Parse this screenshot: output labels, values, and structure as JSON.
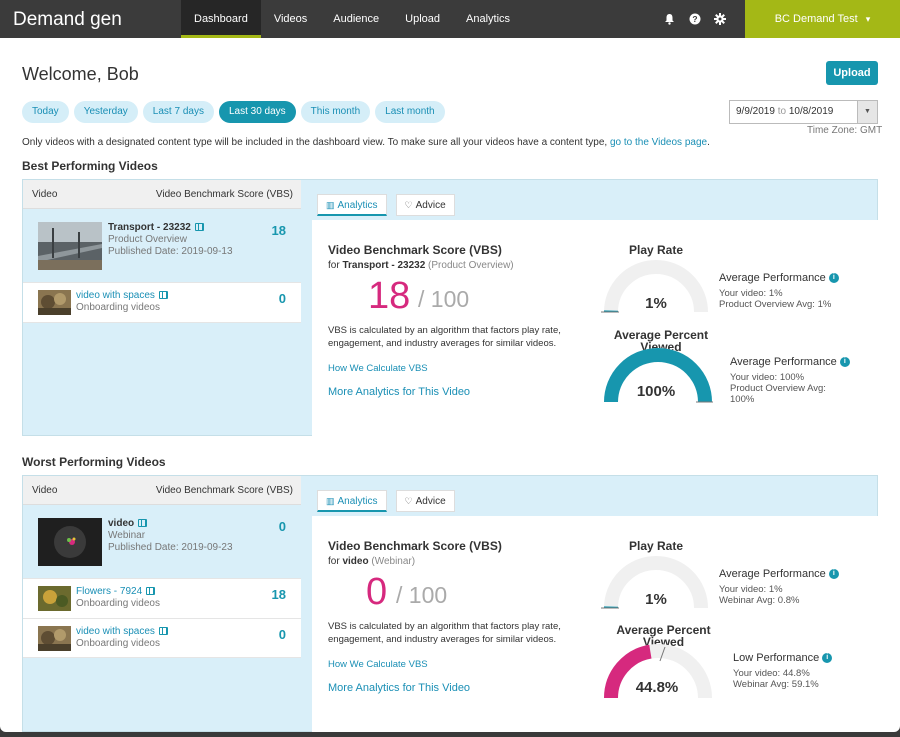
{
  "app": {
    "title": "Demand gen"
  },
  "nav": {
    "items": [
      "Dashboard",
      "Videos",
      "Audience",
      "Upload",
      "Analytics"
    ],
    "active": "Dashboard"
  },
  "top_icons": [
    "bell-icon",
    "help-icon",
    "gear-icon"
  ],
  "account": {
    "label": "BC Demand Test",
    "caret": "▾"
  },
  "welcome": "Welcome, Bob",
  "upload_label": "Upload",
  "date_pills": [
    "Today",
    "Yesterday",
    "Last 7 days",
    "Last 30 days",
    "This month",
    "Last month"
  ],
  "active_pill": "Last 30 days",
  "date_range": {
    "from": "9/9/2019",
    "to_word": "to",
    "to": "10/8/2019",
    "caret": "▼"
  },
  "timezone": "Time Zone: GMT",
  "notice": {
    "text": "Only videos with a designated content type will be included in the dashboard view. To make sure all your videos have a content type,",
    "link": "go to the Videos page",
    "end": "."
  },
  "colors": {
    "accent": "#1796ae",
    "green": "#a4b816",
    "pink": "#d6297e",
    "panel": "#d9eff9"
  },
  "best": {
    "title": "Best Performing Videos",
    "col_video": "Video",
    "col_score": "Video Benchmark Score (VBS)",
    "videos": [
      {
        "title": "Transport - 23232",
        "type": "Product Overview",
        "published": "Published Date: 2019-09-13",
        "score": "18"
      },
      {
        "title": "video with spaces",
        "type": "Onboarding videos",
        "score": "0"
      }
    ],
    "tabs": {
      "analytics": "Analytics",
      "advice": "Advice"
    },
    "vbs_title": "Video Benchmark Score (VBS)",
    "vbs_for": "for",
    "vbs_video": "Transport - 23232",
    "vbs_category": "(Product Overview)",
    "score": "18",
    "score_denominator": "/ 100",
    "description": "VBS is calculated by an algorithm that factors play rate, engagement, and industry averages for similar videos.",
    "how_link": "How We Calculate VBS",
    "more_link": "More Analytics for This Video",
    "play_rate": {
      "title": "Play Rate",
      "value": "1%",
      "fraction": 0.01,
      "perf": "Average Performance",
      "yours": "Your video: 1%",
      "avg": "Product Overview Avg: 1%"
    },
    "viewed": {
      "title": "Average Percent Viewed",
      "value": "100%",
      "fraction": 1.0,
      "perf": "Average Performance",
      "yours": "Your video: 100%",
      "avg_label": "Product Overview Avg:",
      "avg_value": "100%"
    }
  },
  "worst": {
    "title": "Worst Performing Videos",
    "col_video": "Video",
    "col_score": "Video Benchmark Score (VBS)",
    "videos": [
      {
        "title": "video",
        "type": "Webinar",
        "published": "Published Date: 2019-09-23",
        "score": "0"
      },
      {
        "title": "Flowers - 7924",
        "type": "Onboarding videos",
        "score": "18"
      },
      {
        "title": "video with spaces",
        "type": "Onboarding videos",
        "score": "0"
      }
    ],
    "tabs": {
      "analytics": "Analytics",
      "advice": "Advice"
    },
    "vbs_title": "Video Benchmark Score (VBS)",
    "vbs_for": "for",
    "vbs_video": "video",
    "vbs_category": "(Webinar)",
    "score": "0",
    "score_denominator": "/ 100",
    "description": "VBS is calculated by an algorithm that factors play rate, engagement, and industry averages for similar videos.",
    "how_link": "How We Calculate VBS",
    "more_link": "More Analytics for This Video",
    "play_rate": {
      "title": "Play Rate",
      "value": "1%",
      "fraction": 0.01,
      "perf": "Average Performance",
      "yours": "Your video: 1%",
      "avg": "Webinar Avg: 0.8%"
    },
    "viewed": {
      "title": "Average Percent Viewed",
      "value": "44.8%",
      "fraction": 0.448,
      "perf": "Low Performance",
      "yours": "Your video: 44.8%",
      "avg": "Webinar Avg: 59.1%"
    }
  }
}
